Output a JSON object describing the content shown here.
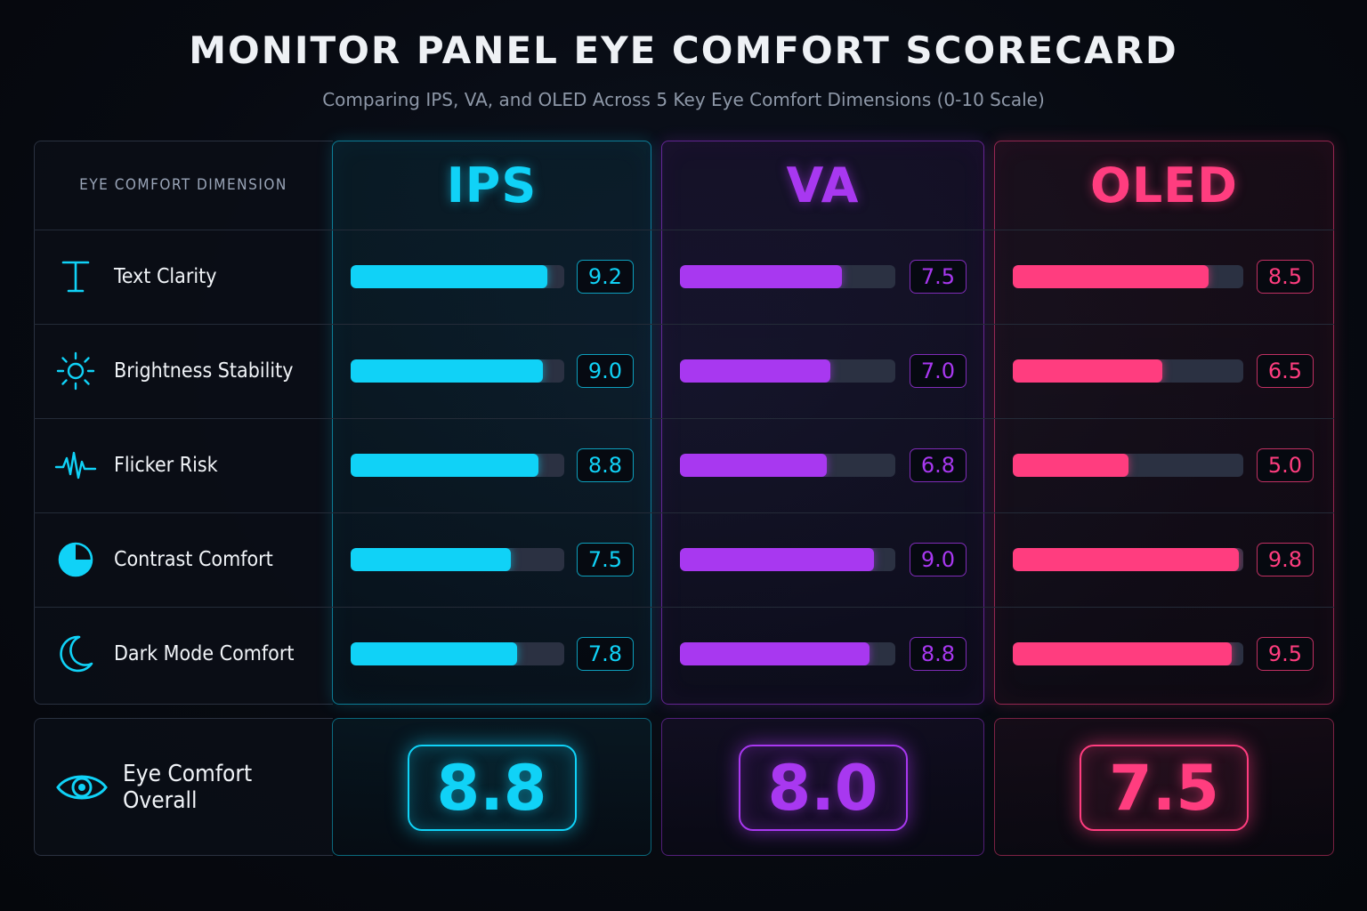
{
  "title": "MONITOR PANEL EYE COMFORT SCORECARD",
  "subtitle": "Comparing IPS, VA, and OLED Across 5 Key Eye Comfort Dimensions (0-10 Scale)",
  "dimension_header": "EYE COMFORT DIMENSION",
  "dimensions": [
    {
      "label": "Text Clarity",
      "icon": "text-t-icon"
    },
    {
      "label": "Brightness Stability",
      "icon": "sun-icon"
    },
    {
      "label": "Flicker Risk",
      "icon": "pulse-wave-icon"
    },
    {
      "label": "Contrast Comfort",
      "icon": "contrast-circle-icon"
    },
    {
      "label": "Dark Mode Comfort",
      "icon": "moon-icon"
    }
  ],
  "overall_label": "Eye Comfort Overall",
  "overall_icon": "eye-icon",
  "colors": {
    "IPS": "#10d2f7",
    "VA": "#a838f0",
    "OLED": "#ff3d7f",
    "track": "#2b3142"
  },
  "chart_data": {
    "type": "bar",
    "title": "MONITOR PANEL EYE COMFORT SCORECARD",
    "subtitle": "Comparing IPS, VA, and OLED Across 5 Key Eye Comfort Dimensions (0-10 Scale)",
    "categories": [
      "Text Clarity",
      "Brightness Stability",
      "Flicker Risk",
      "Contrast Comfort",
      "Dark Mode Comfort"
    ],
    "ylim": [
      0,
      10
    ],
    "series": [
      {
        "name": "IPS",
        "values": [
          "9.2",
          "9.0",
          "8.8",
          "7.5",
          "7.8"
        ],
        "overall": "8.8"
      },
      {
        "name": "VA",
        "values": [
          "7.5",
          "7.0",
          "6.8",
          "9.0",
          "8.8"
        ],
        "overall": "8.0"
      },
      {
        "name": "OLED",
        "values": [
          "8.5",
          "6.5",
          "5.0",
          "9.8",
          "9.5"
        ],
        "overall": "7.5"
      }
    ]
  }
}
